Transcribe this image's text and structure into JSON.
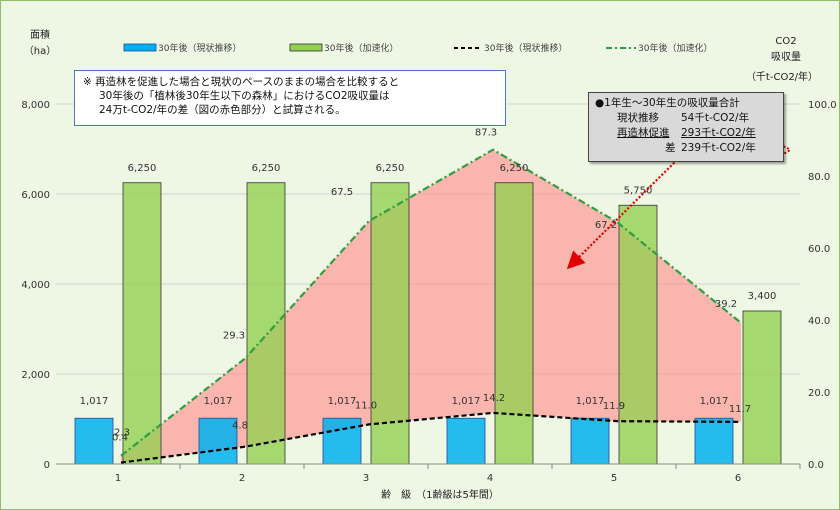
{
  "chart_data": {
    "type": "bar",
    "categories": [
      "1",
      "2",
      "3",
      "4",
      "5",
      "6"
    ],
    "xlabel": "齢　級　（1齢級は5年間）",
    "y_left_label_line1": "面積",
    "y_left_label_line2": "（ha）",
    "y_right_label_line1": "CO2",
    "y_right_label_line2": "吸収量",
    "y_right_label_line3": "（千t-CO2/年）",
    "y_left_ticks": [
      "0",
      "2,000",
      "4,000",
      "6,000",
      "8,000"
    ],
    "y_right_ticks": [
      "0.0",
      "20.0",
      "40.0",
      "60.0",
      "80.0",
      "100.0"
    ],
    "ylim_left": [
      0,
      8000
    ],
    "ylim_right": [
      0,
      100
    ],
    "series": [
      {
        "name": "30年後（現状推移）",
        "kind": "bar",
        "axis": "left",
        "color": "#00b0f0",
        "values": [
          1017,
          1017,
          1017,
          1017,
          1017,
          1017
        ],
        "labels": [
          "1,017",
          "1,017",
          "1,017",
          "1,017",
          "1,017",
          "1,017"
        ]
      },
      {
        "name": "30年後（加速化）",
        "kind": "bar",
        "axis": "left",
        "color": "#92d050",
        "values": [
          6250,
          6250,
          6250,
          6250,
          5750,
          3400
        ],
        "labels": [
          "6,250",
          "6,250",
          "6,250",
          "6,250",
          "5,750",
          "3,400"
        ]
      },
      {
        "name": "30年後（現状推移）",
        "kind": "line",
        "axis": "right",
        "color": "#000000",
        "values": [
          0.4,
          4.8,
          11.0,
          14.2,
          11.9,
          11.7
        ],
        "labels": [
          "0.4",
          "4.8",
          "11.0",
          "14.2",
          "11.9",
          "11.7"
        ]
      },
      {
        "name": "30年後（加速化）",
        "kind": "line",
        "axis": "right",
        "color": "#2e9e3e",
        "values": [
          2.3,
          29.3,
          67.5,
          87.3,
          67.2,
          39.2
        ],
        "labels": [
          "2.3",
          "29.3",
          "67.5",
          "87.3",
          "67.2",
          "39.2"
        ]
      }
    ],
    "legend_position": "top"
  },
  "note": {
    "line1": "※ 再造林を促進した場合と現状のペースのままの場合を比較すると",
    "line2": "30年後の「植林後30年生以下の森林」におけるCO2吸収量は",
    "line3": "24万t-CO2/年の差（図の赤色部分）と試算される。"
  },
  "summary": {
    "title": "●1年生～30年生の吸収量合計",
    "rows": [
      {
        "label": "現状推移",
        "value": "54千t-CO2/年"
      },
      {
        "label": "再造林促進",
        "value": "293千t-CO2/年"
      },
      {
        "label": "差",
        "value": "239千t-CO2/年"
      }
    ]
  },
  "colors": {
    "bar_current": "#00b0f0",
    "bar_accel": "#92d050",
    "diff_fill": "#ff8c8c",
    "line_accel": "#2e9e3e",
    "line_current": "#000000",
    "highlight": "#e00000"
  }
}
